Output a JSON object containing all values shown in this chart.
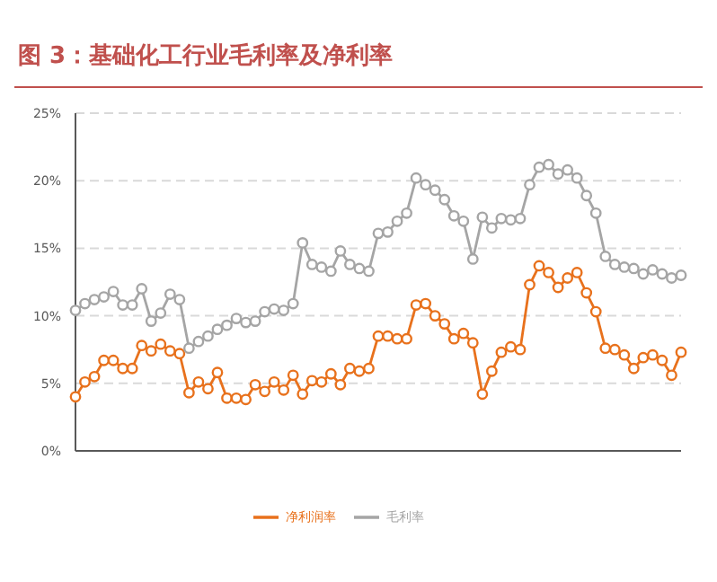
{
  "chart_data": {
    "type": "line",
    "title": "图 3：基础化工行业毛利率及净利率",
    "categories": [
      null,
      null,
      null,
      null,
      null,
      null,
      null,
      null,
      null,
      null,
      null,
      null,
      null,
      null,
      null,
      null,
      null,
      null,
      null,
      null,
      null,
      null,
      null,
      null,
      null,
      null,
      null,
      null,
      null,
      null,
      null,
      null,
      null,
      null,
      null,
      null,
      null,
      null,
      null,
      null,
      null,
      null,
      null,
      null,
      null,
      null,
      null,
      null,
      null,
      null,
      null,
      null,
      null,
      null,
      null,
      null,
      null,
      null,
      null,
      null,
      null,
      null,
      null,
      null,
      null
    ],
    "series": [
      {
        "name": "净利润率",
        "color": "#e8711c",
        "values": [
          4.0,
          5.1,
          5.5,
          6.7,
          6.7,
          6.1,
          6.1,
          7.8,
          7.4,
          7.9,
          7.4,
          7.2,
          4.3,
          5.1,
          4.6,
          5.8,
          3.9,
          3.9,
          3.8,
          4.9,
          4.4,
          5.1,
          4.5,
          5.6,
          4.2,
          5.2,
          5.1,
          5.7,
          4.9,
          6.1,
          5.9,
          6.1,
          8.5,
          8.5,
          8.3,
          8.3,
          10.8,
          10.9,
          10.0,
          9.4,
          8.3,
          8.7,
          8.0,
          4.2,
          5.9,
          7.3,
          7.7,
          7.5,
          12.3,
          13.7,
          13.2,
          12.1,
          12.8,
          13.2,
          11.7,
          10.3,
          7.6,
          7.5,
          7.1,
          6.1,
          6.9,
          7.1,
          6.7,
          5.6,
          7.3
        ]
      },
      {
        "name": "毛利率",
        "color": "#a5a5a5",
        "values": [
          10.4,
          10.9,
          11.2,
          11.4,
          11.8,
          10.8,
          10.8,
          12.0,
          9.6,
          10.2,
          11.6,
          11.2,
          7.6,
          8.1,
          8.5,
          9.0,
          9.3,
          9.8,
          9.5,
          9.6,
          10.3,
          10.5,
          10.4,
          10.9,
          15.4,
          13.8,
          13.6,
          13.3,
          14.8,
          13.8,
          13.5,
          13.3,
          16.1,
          16.2,
          17.0,
          17.6,
          20.2,
          19.7,
          19.3,
          18.6,
          17.4,
          17.0,
          14.2,
          17.3,
          16.5,
          17.2,
          17.1,
          17.2,
          19.7,
          21.0,
          21.2,
          20.5,
          20.8,
          20.2,
          18.9,
          17.6,
          14.4,
          13.8,
          13.6,
          13.5,
          13.1,
          13.4,
          13.1,
          12.8,
          13.0
        ]
      }
    ],
    "ylim": [
      0,
      25
    ],
    "yticks": [
      {
        "value": 0,
        "label": "0%"
      },
      {
        "value": 5,
        "label": "5%"
      },
      {
        "value": 10,
        "label": "10%"
      },
      {
        "value": 15,
        "label": "15%"
      },
      {
        "value": 20,
        "label": "20%"
      },
      {
        "value": 25,
        "label": "25%"
      }
    ],
    "grid": "y",
    "legend": "bottom",
    "marker": "circle",
    "line_style": "solid",
    "tick_labels": "y"
  }
}
